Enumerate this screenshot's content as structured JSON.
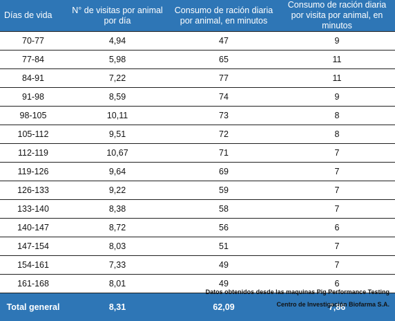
{
  "table": {
    "headers": [
      "Días de vida",
      "N° de visitas por animal por día",
      "Consumo de ración diaria por animal, en minutos",
      "Consumo de ración diaria por visita por animal, en minutos"
    ],
    "rows": [
      [
        "70-77",
        "4,94",
        "47",
        "9"
      ],
      [
        "77-84",
        "5,98",
        "65",
        "11"
      ],
      [
        "84-91",
        "7,22",
        "77",
        "11"
      ],
      [
        "91-98",
        "8,59",
        "74",
        "9"
      ],
      [
        "98-105",
        "10,11",
        "73",
        "8"
      ],
      [
        "105-112",
        "9,51",
        "72",
        "8"
      ],
      [
        "112-119",
        "10,67",
        "71",
        "7"
      ],
      [
        "119-126",
        "9,64",
        "69",
        "7"
      ],
      [
        "126-133",
        "9,22",
        "59",
        "7"
      ],
      [
        "133-140",
        "8,38",
        "58",
        "7"
      ],
      [
        "140-147",
        "8,72",
        "56",
        "6"
      ],
      [
        "147-154",
        "8,03",
        "51",
        "7"
      ],
      [
        "154-161",
        "7,33",
        "49",
        "7"
      ],
      [
        "161-168",
        "8,01",
        "49",
        "6"
      ]
    ],
    "total": [
      "Total general",
      "8,31",
      "62,09",
      "7,86"
    ]
  },
  "source": {
    "line1": "Datos obtenidos desde las maquinas Pig Performance Testing",
    "line2": "Centro de Investigación Biofarma S.A."
  },
  "colors": {
    "header_bg": "#2e76b6",
    "header_text": "#ffffff",
    "row_border": "#1f1f1f"
  }
}
